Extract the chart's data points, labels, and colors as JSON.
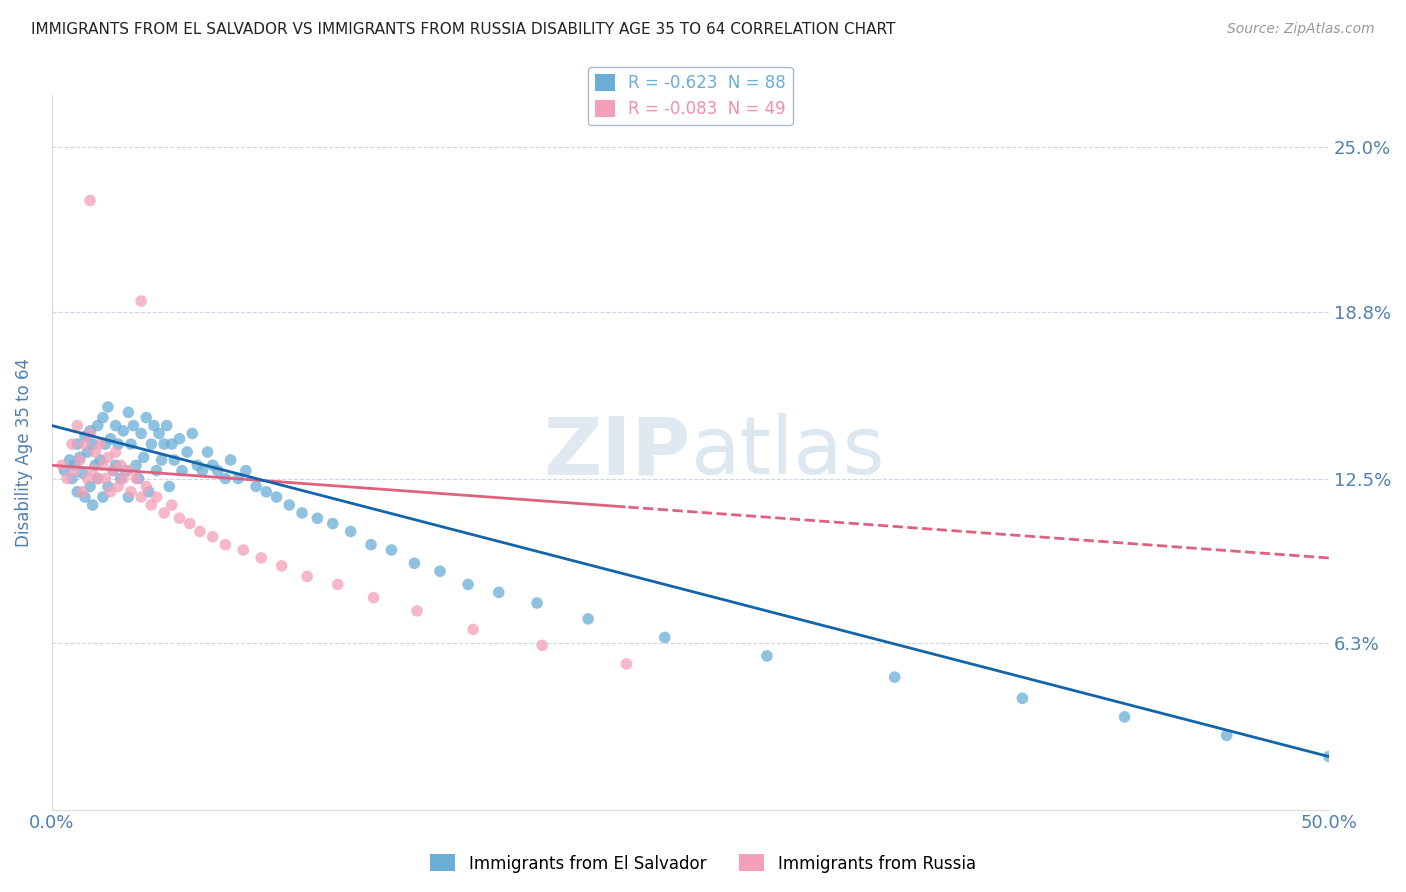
{
  "title": "IMMIGRANTS FROM EL SALVADOR VS IMMIGRANTS FROM RUSSIA DISABILITY AGE 35 TO 64 CORRELATION CHART",
  "source": "Source: ZipAtlas.com",
  "ylabel": "Disability Age 35 to 64",
  "x_min": 0.0,
  "x_max": 0.5,
  "y_min": 0.0,
  "y_max": 0.27,
  "y_ticks": [
    0.063,
    0.125,
    0.188,
    0.25
  ],
  "y_tick_labels": [
    "6.3%",
    "12.5%",
    "18.8%",
    "25.0%"
  ],
  "x_ticks": [
    0.0,
    0.5
  ],
  "x_tick_labels": [
    "0.0%",
    "50.0%"
  ],
  "watermark_zip": "ZIP",
  "watermark_atlas": "atlas",
  "legend_entries": [
    {
      "label": "R = -0.623  N = 88",
      "color": "#6aaed6"
    },
    {
      "label": "R = -0.083  N = 49",
      "color": "#f090a8"
    }
  ],
  "legend_series": [
    "Immigrants from El Salvador",
    "Immigrants from Russia"
  ],
  "blue_color": "#6aaed6",
  "pink_color": "#f4a0b8",
  "blue_line_color": "#1464aa",
  "pink_line_color": "#e06080",
  "grid_color": "#c8d8e8",
  "title_color": "#222222",
  "axis_label_color": "#5080b0",
  "tick_label_color": "#5080b0",
  "blue_scatter_x": [
    0.005,
    0.007,
    0.008,
    0.009,
    0.01,
    0.01,
    0.011,
    0.012,
    0.013,
    0.013,
    0.014,
    0.015,
    0.015,
    0.016,
    0.016,
    0.017,
    0.018,
    0.018,
    0.019,
    0.02,
    0.02,
    0.021,
    0.022,
    0.022,
    0.023,
    0.024,
    0.025,
    0.025,
    0.026,
    0.027,
    0.028,
    0.029,
    0.03,
    0.03,
    0.031,
    0.032,
    0.033,
    0.034,
    0.035,
    0.036,
    0.037,
    0.038,
    0.039,
    0.04,
    0.041,
    0.042,
    0.043,
    0.044,
    0.045,
    0.046,
    0.047,
    0.048,
    0.05,
    0.051,
    0.053,
    0.055,
    0.057,
    0.059,
    0.061,
    0.063,
    0.065,
    0.068,
    0.07,
    0.073,
    0.076,
    0.08,
    0.084,
    0.088,
    0.093,
    0.098,
    0.104,
    0.11,
    0.117,
    0.125,
    0.133,
    0.142,
    0.152,
    0.163,
    0.175,
    0.19,
    0.21,
    0.24,
    0.28,
    0.33,
    0.38,
    0.42,
    0.46,
    0.5
  ],
  "blue_scatter_y": [
    0.128,
    0.132,
    0.125,
    0.13,
    0.138,
    0.12,
    0.133,
    0.127,
    0.141,
    0.118,
    0.135,
    0.143,
    0.122,
    0.138,
    0.115,
    0.13,
    0.145,
    0.125,
    0.132,
    0.148,
    0.118,
    0.138,
    0.152,
    0.122,
    0.14,
    0.128,
    0.145,
    0.13,
    0.138,
    0.125,
    0.143,
    0.128,
    0.15,
    0.118,
    0.138,
    0.145,
    0.13,
    0.125,
    0.142,
    0.133,
    0.148,
    0.12,
    0.138,
    0.145,
    0.128,
    0.142,
    0.132,
    0.138,
    0.145,
    0.122,
    0.138,
    0.132,
    0.14,
    0.128,
    0.135,
    0.142,
    0.13,
    0.128,
    0.135,
    0.13,
    0.128,
    0.125,
    0.132,
    0.125,
    0.128,
    0.122,
    0.12,
    0.118,
    0.115,
    0.112,
    0.11,
    0.108,
    0.105,
    0.1,
    0.098,
    0.093,
    0.09,
    0.085,
    0.082,
    0.078,
    0.072,
    0.065,
    0.058,
    0.05,
    0.042,
    0.035,
    0.028,
    0.02
  ],
  "pink_scatter_x": [
    0.004,
    0.006,
    0.008,
    0.009,
    0.01,
    0.011,
    0.012,
    0.013,
    0.014,
    0.015,
    0.016,
    0.017,
    0.018,
    0.019,
    0.02,
    0.021,
    0.022,
    0.023,
    0.024,
    0.025,
    0.026,
    0.027,
    0.028,
    0.03,
    0.031,
    0.033,
    0.035,
    0.037,
    0.039,
    0.041,
    0.044,
    0.047,
    0.05,
    0.054,
    0.058,
    0.063,
    0.068,
    0.075,
    0.082,
    0.09,
    0.1,
    0.112,
    0.126,
    0.143,
    0.165,
    0.192,
    0.225,
    0.015,
    0.035
  ],
  "pink_scatter_y": [
    0.13,
    0.125,
    0.138,
    0.128,
    0.145,
    0.132,
    0.12,
    0.138,
    0.125,
    0.142,
    0.128,
    0.135,
    0.125,
    0.138,
    0.13,
    0.125,
    0.133,
    0.12,
    0.128,
    0.135,
    0.122,
    0.13,
    0.125,
    0.128,
    0.12,
    0.125,
    0.118,
    0.122,
    0.115,
    0.118,
    0.112,
    0.115,
    0.11,
    0.108,
    0.105,
    0.103,
    0.1,
    0.098,
    0.095,
    0.092,
    0.088,
    0.085,
    0.08,
    0.075,
    0.068,
    0.062,
    0.055,
    0.23,
    0.192
  ]
}
